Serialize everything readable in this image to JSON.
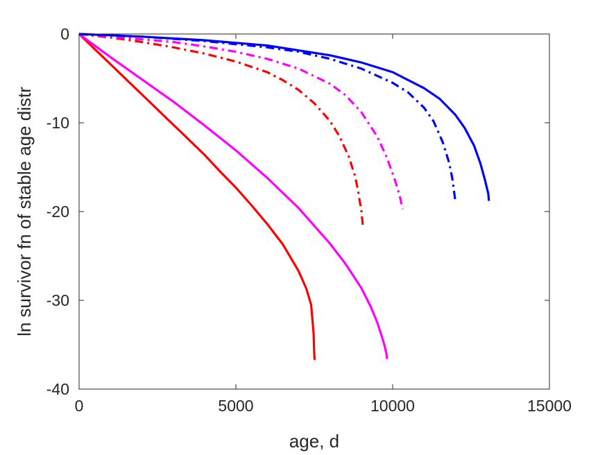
{
  "chart_data": {
    "type": "line",
    "title": "",
    "xlabel": "age, d",
    "ylabel": "ln survivor fn of stable age distr",
    "xlim": [
      0,
      15000
    ],
    "ylim": [
      -40,
      0
    ],
    "xticks": [
      0,
      5000,
      10000,
      15000
    ],
    "xtick_labels": [
      "0",
      "5000",
      "10000",
      "15000"
    ],
    "yticks": [
      0,
      -10,
      -20,
      -30,
      -40
    ],
    "ytick_labels": [
      "0",
      "-10",
      "-20",
      "-30",
      "-40"
    ],
    "grid": false,
    "legend": "none",
    "series": [
      {
        "color": "#ff0000",
        "style": "solid",
        "points": [
          [
            0,
            0
          ],
          [
            500,
            -1.7
          ],
          [
            1000,
            -3.4
          ],
          [
            1500,
            -5.1
          ],
          [
            2000,
            -6.8
          ],
          [
            2500,
            -8.5
          ],
          [
            3000,
            -10.2
          ],
          [
            3500,
            -11.9
          ],
          [
            4000,
            -13.6
          ],
          [
            4500,
            -15.5
          ],
          [
            5000,
            -17.3
          ],
          [
            5500,
            -19.3
          ],
          [
            6000,
            -21.4
          ],
          [
            6500,
            -23.7
          ],
          [
            7000,
            -26.7
          ],
          [
            7250,
            -28.7
          ],
          [
            7400,
            -30.5
          ],
          [
            7450,
            -32.5
          ],
          [
            7480,
            -33.8
          ],
          [
            7490,
            -34.9
          ],
          [
            7500,
            -36.1
          ],
          [
            7510,
            -36.7
          ]
        ]
      },
      {
        "color": "#ff00ff",
        "style": "solid",
        "points": [
          [
            0,
            0
          ],
          [
            1000,
            -2.6
          ],
          [
            2000,
            -5.1
          ],
          [
            3000,
            -7.6
          ],
          [
            4000,
            -10.3
          ],
          [
            5000,
            -13.1
          ],
          [
            6000,
            -16.2
          ],
          [
            7000,
            -19.6
          ],
          [
            8000,
            -23.6
          ],
          [
            8500,
            -25.9
          ],
          [
            9000,
            -28.6
          ],
          [
            9300,
            -30.7
          ],
          [
            9500,
            -32.4
          ],
          [
            9650,
            -34.0
          ],
          [
            9750,
            -35.2
          ],
          [
            9800,
            -36.0
          ],
          [
            9820,
            -36.6
          ]
        ]
      },
      {
        "color": "#ff0000",
        "style": "dashdot",
        "points": [
          [
            0,
            0
          ],
          [
            1000,
            -0.4
          ],
          [
            2000,
            -0.9
          ],
          [
            3000,
            -1.5
          ],
          [
            4000,
            -2.2
          ],
          [
            5000,
            -3.1
          ],
          [
            6000,
            -4.3
          ],
          [
            6500,
            -5.2
          ],
          [
            7000,
            -6.3
          ],
          [
            7500,
            -7.8
          ],
          [
            8000,
            -9.8
          ],
          [
            8300,
            -11.5
          ],
          [
            8600,
            -13.8
          ],
          [
            8800,
            -16.0
          ],
          [
            8900,
            -17.7
          ],
          [
            8950,
            -18.8
          ],
          [
            9000,
            -19.8
          ],
          [
            9020,
            -20.6
          ],
          [
            9040,
            -21.1
          ],
          [
            9050,
            -21.8
          ]
        ]
      },
      {
        "color": "#ff00ff",
        "style": "dashdot",
        "points": [
          [
            0,
            0
          ],
          [
            1000,
            -0.3
          ],
          [
            2000,
            -0.6
          ],
          [
            3000,
            -0.9
          ],
          [
            4000,
            -1.4
          ],
          [
            5000,
            -2.0
          ],
          [
            6000,
            -2.8
          ],
          [
            7000,
            -3.9
          ],
          [
            8000,
            -5.6
          ],
          [
            8500,
            -6.9
          ],
          [
            9000,
            -8.8
          ],
          [
            9500,
            -11.5
          ],
          [
            9800,
            -13.8
          ],
          [
            10000,
            -15.7
          ],
          [
            10150,
            -17.3
          ],
          [
            10250,
            -18.6
          ],
          [
            10300,
            -19.5
          ],
          [
            10320,
            -19.7
          ]
        ]
      },
      {
        "color": "#0000ff",
        "style": "dashdot",
        "points": [
          [
            0,
            0
          ],
          [
            2000,
            -0.3
          ],
          [
            4000,
            -0.8
          ],
          [
            6000,
            -1.5
          ],
          [
            7000,
            -2.0
          ],
          [
            8000,
            -2.8
          ],
          [
            9000,
            -3.9
          ],
          [
            10000,
            -5.5
          ],
          [
            10500,
            -6.6
          ],
          [
            11000,
            -8.3
          ],
          [
            11300,
            -9.8
          ],
          [
            11600,
            -12.2
          ],
          [
            11800,
            -14.5
          ],
          [
            11900,
            -16.2
          ],
          [
            11950,
            -17.5
          ],
          [
            11980,
            -18.3
          ],
          [
            12000,
            -18.9
          ]
        ]
      },
      {
        "color": "#0000ff",
        "style": "solid",
        "points": [
          [
            0,
            0
          ],
          [
            2000,
            -0.3
          ],
          [
            4000,
            -0.7
          ],
          [
            6000,
            -1.3
          ],
          [
            8000,
            -2.4
          ],
          [
            9000,
            -3.2
          ],
          [
            10000,
            -4.3
          ],
          [
            11000,
            -6.1
          ],
          [
            11500,
            -7.3
          ],
          [
            12000,
            -9.1
          ],
          [
            12300,
            -10.6
          ],
          [
            12600,
            -12.6
          ],
          [
            12800,
            -14.6
          ],
          [
            12950,
            -16.5
          ],
          [
            13050,
            -18.0
          ],
          [
            13070,
            -18.8
          ]
        ]
      }
    ]
  }
}
